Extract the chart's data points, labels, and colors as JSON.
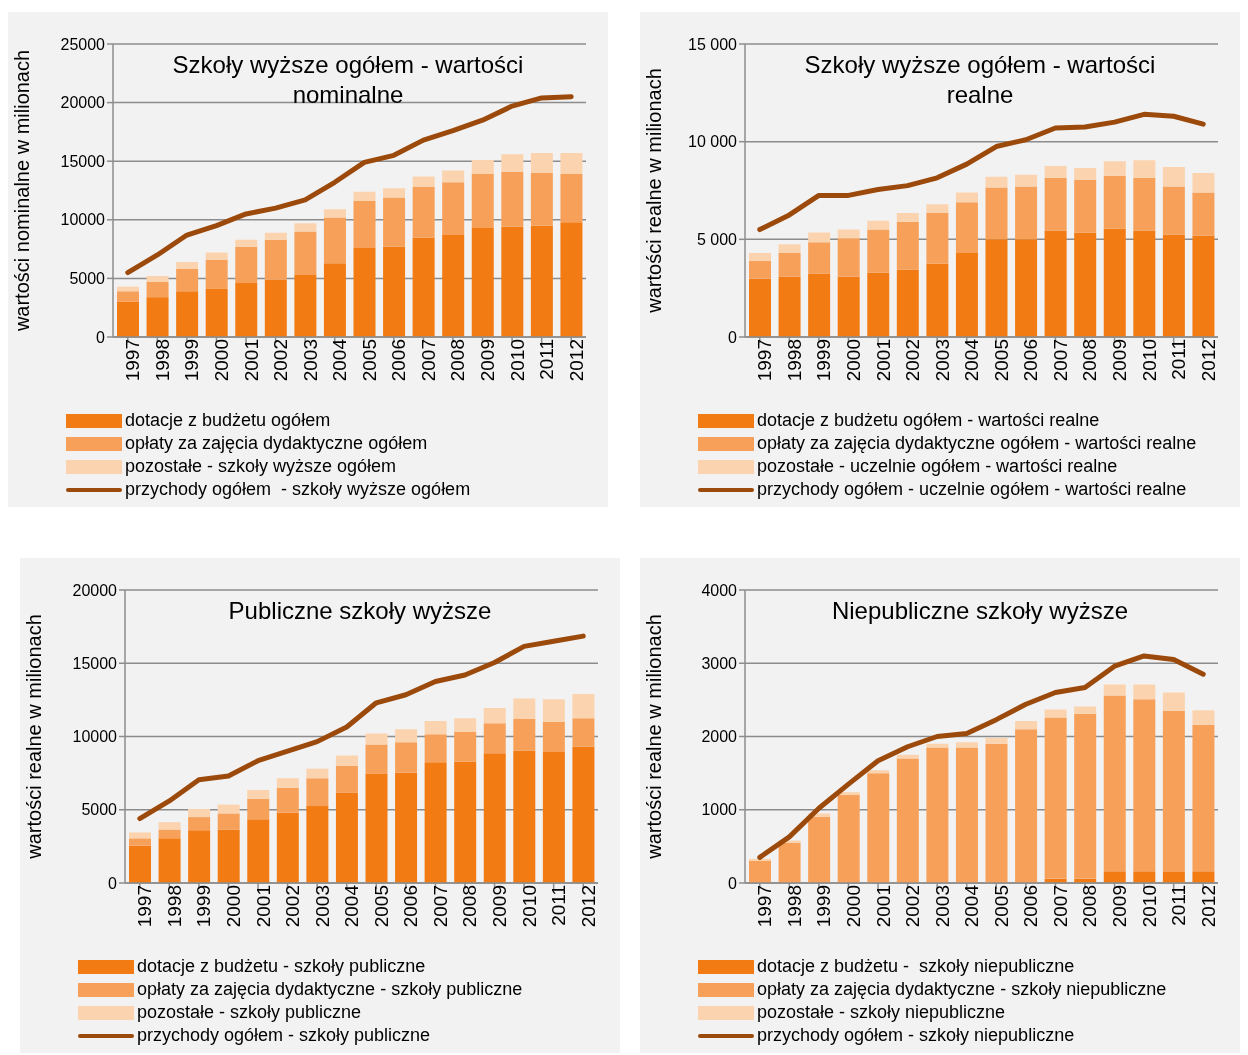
{
  "chart_data": [
    {
      "type": "bar",
      "stacked": true,
      "title": "Szkoły wyższe ogółem - wartości nominalne",
      "ylabel": "wartości nominalne w milionach",
      "categories": [
        "1997",
        "1998",
        "1999",
        "2000",
        "2001",
        "2002",
        "2003",
        "2004",
        "2005",
        "2006",
        "2007",
        "2008",
        "2009",
        "2010",
        "2011",
        "2012"
      ],
      "ylim": [
        0,
        25000
      ],
      "yticks": [
        0,
        5000,
        10000,
        15000,
        20000,
        25000
      ],
      "grid": "y",
      "legend": "bottom",
      "marker": "none",
      "series": [
        {
          "name": "dotacje z budżetu ogółem",
          "color": "#f27b14",
          "values": [
            3000,
            3400,
            3900,
            4100,
            4600,
            4900,
            5300,
            6300,
            7600,
            7700,
            8500,
            8700,
            9300,
            9400,
            9500,
            9800
          ]
        },
        {
          "name": "opłaty za zajęcia dydaktyczne ogółem",
          "color": "#f7a05a",
          "values": [
            900,
            1300,
            1900,
            2500,
            3100,
            3400,
            3700,
            3900,
            4000,
            4200,
            4300,
            4500,
            4600,
            4700,
            4500,
            4100
          ]
        },
        {
          "name": "pozostałe - szkoły wyższe ogółem",
          "color": "#fbd3ae",
          "values": [
            400,
            500,
            600,
            600,
            600,
            600,
            700,
            700,
            800,
            800,
            900,
            1000,
            1200,
            1500,
            1700,
            1800
          ]
        },
        {
          "name": "przychody ogółem  - szkoły wyższe ogółem",
          "type": "line",
          "color": "#9c4a0c",
          "values": [
            5500,
            7000,
            8700,
            9500,
            10500,
            11000,
            11700,
            13200,
            14900,
            15500,
            16800,
            17600,
            18500,
            19700,
            20400,
            20500
          ]
        }
      ]
    },
    {
      "type": "bar",
      "stacked": true,
      "title": "Szkoły wyższe ogółem - wartości realne",
      "ylabel": "wartości realne w milionach",
      "categories": [
        "1997",
        "1998",
        "1999",
        "2000",
        "2001",
        "2002",
        "2003",
        "2004",
        "2005",
        "2006",
        "2007",
        "2008",
        "2009",
        "2010",
        "2011",
        "2012"
      ],
      "ylim": [
        0,
        15000
      ],
      "yticks": [
        0,
        {
          "value": 5000,
          "label": "5 000"
        },
        {
          "value": 10000,
          "label": "10 000"
        },
        {
          "value": 15000,
          "label": "15 000"
        }
      ],
      "grid": "y",
      "legend": "bottom",
      "marker": "none",
      "series": [
        {
          "name": "dotacje z budżetu ogółem - wartości realne",
          "color": "#f27b14",
          "values": [
            3000,
            3100,
            3250,
            3100,
            3300,
            3450,
            3750,
            4300,
            5000,
            5000,
            5450,
            5350,
            5550,
            5450,
            5250,
            5200
          ]
        },
        {
          "name": "opłaty za zajęcia dydaktyczne ogółem - wartości realne",
          "color": "#f7a05a",
          "values": [
            900,
            1200,
            1600,
            1950,
            2200,
            2450,
            2600,
            2600,
            2650,
            2700,
            2700,
            2700,
            2700,
            2700,
            2450,
            2200
          ]
        },
        {
          "name": "pozostałe - uczelnie ogółem - wartości realne",
          "color": "#fbd3ae",
          "values": [
            400,
            450,
            500,
            450,
            450,
            450,
            450,
            500,
            550,
            600,
            600,
            600,
            750,
            900,
            1000,
            1000
          ]
        },
        {
          "name": "przychody ogółem - uczelnie ogółem - wartości realne",
          "type": "line",
          "color": "#9c4a0c",
          "values": [
            5500,
            6250,
            7250,
            7250,
            7550,
            7750,
            8150,
            8850,
            9750,
            10100,
            10700,
            10750,
            11000,
            11400,
            11300,
            10900
          ]
        }
      ]
    },
    {
      "type": "bar",
      "stacked": true,
      "title": "Publiczne szkoły wyższe",
      "ylabel": "wartości realne w milionach",
      "categories": [
        "1997",
        "1998",
        "1999",
        "2000",
        "2001",
        "2002",
        "2003",
        "2004",
        "2005",
        "2006",
        "2007",
        "2008",
        "2009",
        "2010",
        "2011",
        "2012"
      ],
      "ylim": [
        0,
        20000
      ],
      "yticks": [
        0,
        5000,
        10000,
        15000,
        20000
      ],
      "grid": "y",
      "legend": "bottom",
      "marker": "none",
      "series": [
        {
          "name": "dotacje z budżetu - szkoły publiczne",
          "color": "#f27b14",
          "values": [
            2550,
            3050,
            3600,
            3650,
            4350,
            4800,
            5250,
            6150,
            7450,
            7550,
            8250,
            8300,
            8850,
            9050,
            8950,
            9300
          ]
        },
        {
          "name": "opłaty za zajęcia dydaktyczne - szkoły publiczne",
          "color": "#f7a05a",
          "values": [
            500,
            600,
            900,
            1100,
            1400,
            1700,
            1900,
            1850,
            2000,
            2050,
            1900,
            2000,
            2050,
            2150,
            2050,
            1950
          ]
        },
        {
          "name": "pozostałe - szkoły publiczne",
          "color": "#fbd3ae",
          "values": [
            400,
            500,
            550,
            600,
            600,
            650,
            650,
            700,
            750,
            900,
            900,
            950,
            1050,
            1400,
            1550,
            1650
          ]
        },
        {
          "name": "przychody ogółem - szkoły publiczne",
          "type": "line",
          "color": "#9c4a0c",
          "values": [
            4400,
            5600,
            7050,
            7300,
            8350,
            9000,
            9650,
            10650,
            12300,
            12850,
            13750,
            14200,
            15050,
            16150,
            16500,
            16850
          ]
        }
      ]
    },
    {
      "type": "bar",
      "stacked": true,
      "title": "Niepubliczne szkoły wyższe",
      "ylabel": "wartości realne w milionach",
      "categories": [
        "1997",
        "1998",
        "1999",
        "2000",
        "2001",
        "2002",
        "2003",
        "2004",
        "2005",
        "2006",
        "2007",
        "2008",
        "2009",
        "2010",
        "2011",
        "2012"
      ],
      "ylim": [
        0,
        4000
      ],
      "yticks": [
        0,
        1000,
        2000,
        3000,
        4000
      ],
      "grid": "y",
      "legend": "bottom",
      "marker": "none",
      "series": [
        {
          "name": "dotacje z budżetu -  szkoły niepubliczne",
          "color": "#f27b14",
          "values": [
            0,
            0,
            0,
            0,
            0,
            0,
            0,
            0,
            0,
            0,
            60,
            60,
            160,
            160,
            150,
            160
          ]
        },
        {
          "name": "opłaty za zajęcia dydaktyczne - szkoły niepubliczne",
          "color": "#f7a05a",
          "values": [
            300,
            550,
            900,
            1200,
            1500,
            1700,
            1850,
            1850,
            1900,
            2100,
            2200,
            2250,
            2400,
            2350,
            2200,
            2000
          ]
        },
        {
          "name": "pozostałe - szkoły niepubliczne",
          "color": "#fbd3ae",
          "values": [
            30,
            30,
            50,
            40,
            40,
            50,
            50,
            70,
            80,
            110,
            110,
            100,
            150,
            200,
            250,
            200
          ]
        },
        {
          "name": "przychody ogółem - szkoły niepubliczne",
          "type": "line",
          "color": "#9c4a0c",
          "values": [
            350,
            630,
            1020,
            1350,
            1670,
            1860,
            2000,
            2040,
            2230,
            2440,
            2600,
            2670,
            2960,
            3100,
            3050,
            2850
          ]
        }
      ]
    }
  ]
}
